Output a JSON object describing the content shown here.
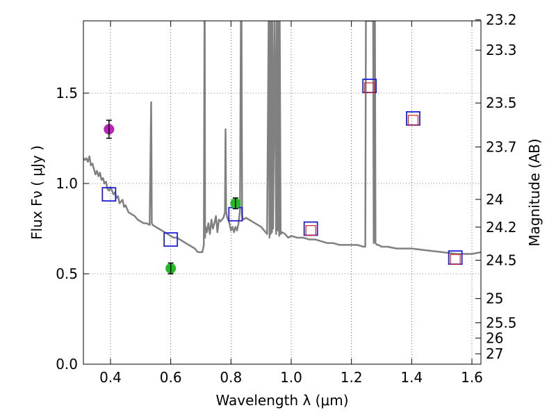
{
  "chart_data": {
    "type": "scatter",
    "title": "",
    "xlabel": "Wavelength  λ (μm)",
    "ylabel": "Flux  Fν  ( μJy )",
    "ylabel_right": "Magnitude (AB)",
    "xlim": [
      0.31,
      1.63
    ],
    "ylim": [
      0.0,
      1.9
    ],
    "grid": true,
    "x_ticks": [
      0.4,
      0.6,
      0.8,
      1.0,
      1.2,
      1.4,
      1.6
    ],
    "x_tick_labels": [
      "0.4",
      "0.6",
      "0.8",
      "1.0",
      "1.2",
      "1.4",
      "1.6"
    ],
    "y_ticks": [
      0.0,
      0.5,
      1.0,
      1.5
    ],
    "y_tick_labels": [
      "0.0",
      "0.5",
      "1.0",
      "1.5"
    ],
    "mag_ticks": [
      23.2,
      23.3,
      23.5,
      23.7,
      24,
      24.2,
      24.5,
      25,
      25.5,
      26,
      27
    ],
    "mag_tick_labels": [
      "23.2",
      "23.3",
      "23.5",
      "23.7",
      "24",
      "24.2",
      "24.5",
      "25",
      "25.5",
      "26",
      "27"
    ],
    "series": [
      {
        "name": "model spectrum",
        "kind": "line",
        "color": "#808080",
        "x": [
          0.31,
          0.315,
          0.32,
          0.325,
          0.33,
          0.335,
          0.34,
          0.345,
          0.35,
          0.355,
          0.36,
          0.365,
          0.37,
          0.375,
          0.38,
          0.385,
          0.39,
          0.395,
          0.4,
          0.405,
          0.41,
          0.415,
          0.42,
          0.425,
          0.43,
          0.435,
          0.44,
          0.445,
          0.45,
          0.455,
          0.46,
          0.47,
          0.48,
          0.49,
          0.5,
          0.51,
          0.52,
          0.53,
          0.535,
          0.536,
          0.537,
          0.54,
          0.55,
          0.56,
          0.57,
          0.58,
          0.59,
          0.6,
          0.61,
          0.62,
          0.63,
          0.64,
          0.65,
          0.66,
          0.67,
          0.68,
          0.69,
          0.7,
          0.705,
          0.71,
          0.712,
          0.713,
          0.714,
          0.716,
          0.72,
          0.725,
          0.73,
          0.735,
          0.74,
          0.745,
          0.75,
          0.755,
          0.76,
          0.765,
          0.77,
          0.775,
          0.78,
          0.782,
          0.784,
          0.786,
          0.79,
          0.795,
          0.8,
          0.805,
          0.81,
          0.815,
          0.82,
          0.825,
          0.83,
          0.833,
          0.835,
          0.837,
          0.84,
          0.85,
          0.86,
          0.87,
          0.88,
          0.89,
          0.9,
          0.91,
          0.92,
          0.925,
          0.928,
          0.93,
          0.932,
          0.934,
          0.936,
          0.938,
          0.94,
          0.945,
          0.95,
          0.952,
          0.955,
          0.958,
          0.96,
          0.962,
          0.965,
          0.97,
          0.98,
          0.99,
          1.0,
          1.02,
          1.04,
          1.06,
          1.08,
          1.1,
          1.12,
          1.14,
          1.16,
          1.18,
          1.2,
          1.22,
          1.24,
          1.246,
          1.248,
          1.25,
          1.26,
          1.265,
          1.27,
          1.272,
          1.274,
          1.276,
          1.278,
          1.28,
          1.285,
          1.29,
          1.3,
          1.32,
          1.35,
          1.4,
          1.45,
          1.5,
          1.55,
          1.6,
          1.63
        ],
        "y": [
          1.14,
          1.13,
          1.14,
          1.12,
          1.15,
          1.1,
          1.11,
          1.08,
          1.05,
          1.07,
          1.04,
          1.06,
          1.02,
          1.03,
          1.0,
          1.01,
          0.97,
          0.96,
          0.98,
          0.96,
          0.94,
          0.95,
          0.92,
          0.93,
          0.89,
          0.9,
          0.91,
          0.87,
          0.88,
          0.86,
          0.84,
          0.83,
          0.82,
          0.8,
          0.79,
          0.78,
          0.78,
          0.77,
          1.45,
          1.2,
          0.78,
          0.77,
          0.76,
          0.75,
          0.74,
          0.73,
          0.72,
          0.71,
          0.7,
          0.7,
          0.69,
          0.68,
          0.67,
          0.66,
          0.65,
          0.64,
          0.62,
          0.62,
          0.62,
          0.66,
          1.9,
          1.9,
          0.7,
          0.76,
          0.73,
          0.78,
          0.72,
          0.8,
          0.75,
          0.78,
          0.82,
          0.73,
          0.8,
          0.79,
          0.8,
          0.81,
          0.84,
          1.3,
          0.85,
          0.82,
          0.8,
          0.78,
          0.74,
          0.76,
          0.73,
          0.76,
          0.74,
          0.78,
          0.85,
          1.9,
          1.9,
          0.82,
          0.8,
          0.81,
          0.8,
          0.79,
          0.78,
          0.77,
          0.76,
          0.74,
          0.72,
          1.9,
          0.7,
          1.9,
          0.72,
          1.9,
          0.73,
          1.9,
          0.75,
          1.9,
          0.72,
          1.9,
          0.74,
          1.9,
          0.71,
          1.9,
          0.72,
          0.73,
          0.72,
          0.7,
          0.71,
          0.7,
          0.7,
          0.69,
          0.69,
          0.68,
          0.67,
          0.67,
          0.66,
          0.66,
          0.66,
          0.66,
          0.65,
          0.65,
          1.9,
          1.9,
          1.9,
          1.9,
          1.9,
          1.9,
          0.67,
          1.9,
          1.9,
          0.67,
          0.66,
          0.66,
          0.65,
          0.65,
          0.64,
          0.64,
          0.63,
          0.62,
          0.61,
          0.61,
          0.62
        ]
      },
      {
        "name": "observed (green)",
        "kind": "points",
        "color": "#22bb22",
        "x": [
          0.6,
          0.815
        ],
        "y": [
          0.53,
          0.89
        ],
        "yerr": [
          0.03,
          0.03
        ]
      },
      {
        "name": "observed (magenta)",
        "kind": "points",
        "color": "#bb22bb",
        "x": [
          0.395
        ],
        "y": [
          1.3
        ],
        "yerr": [
          0.05
        ]
      },
      {
        "name": "model photometry (blue squares)",
        "kind": "squares",
        "color": "#1f1fd6",
        "x": [
          0.395,
          0.6,
          0.815,
          1.065,
          1.26,
          1.405,
          1.545
        ],
        "y": [
          0.94,
          0.69,
          0.83,
          0.75,
          1.54,
          1.36,
          0.59
        ]
      },
      {
        "name": "model photometry (red squares)",
        "kind": "squares",
        "color": "#e02020",
        "x": [
          1.065,
          1.26,
          1.405,
          1.545
        ],
        "y": [
          0.74,
          1.53,
          1.35,
          0.58
        ]
      }
    ]
  }
}
